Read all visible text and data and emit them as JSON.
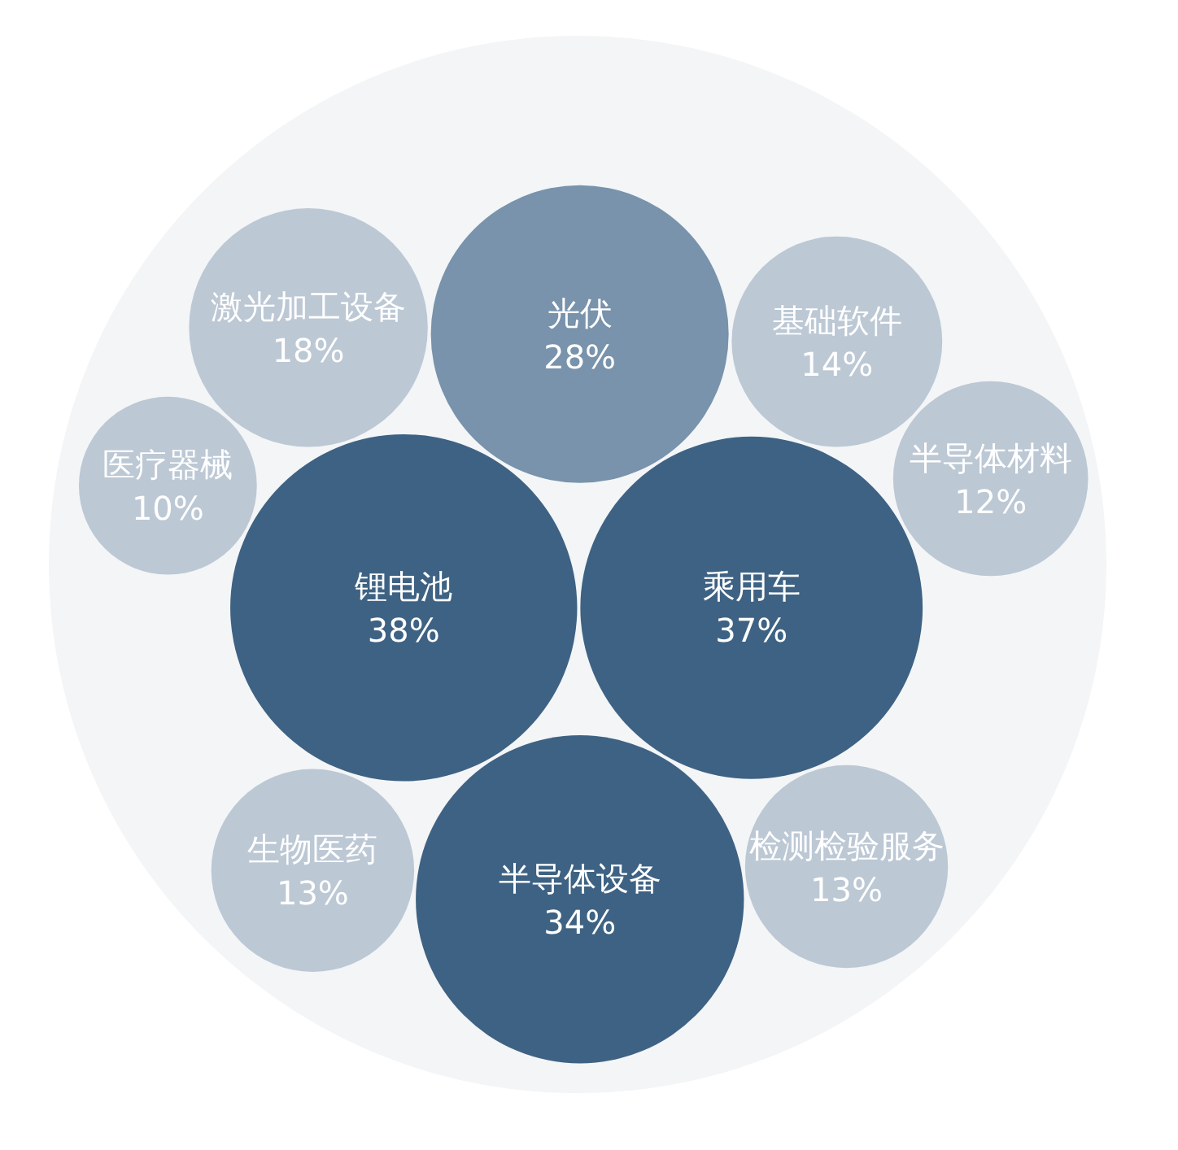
{
  "chart_data": {
    "type": "other",
    "categories": [
      "锂电池",
      "乘用车",
      "光伏",
      "半导体设备",
      "激光加工设备",
      "基础软件",
      "检测检验服务",
      "生物医药",
      "半导体材料",
      "医疗器械"
    ],
    "values": [
      38,
      37,
      28,
      34,
      18,
      14,
      13,
      13,
      12,
      10
    ],
    "value_labels": [
      "38%",
      "37%",
      "28%",
      "34%",
      "18%",
      "14%",
      "13%",
      "13%",
      "12%",
      "10%"
    ],
    "colors": [
      "#3e6283",
      "#3e6283",
      "#7893ab",
      "#3e6283",
      "#bcc8d4",
      "#bcc8d4",
      "#bcc8d4",
      "#bcc8d4",
      "#bcc8d4",
      "#bcc8d4"
    ]
  }
}
